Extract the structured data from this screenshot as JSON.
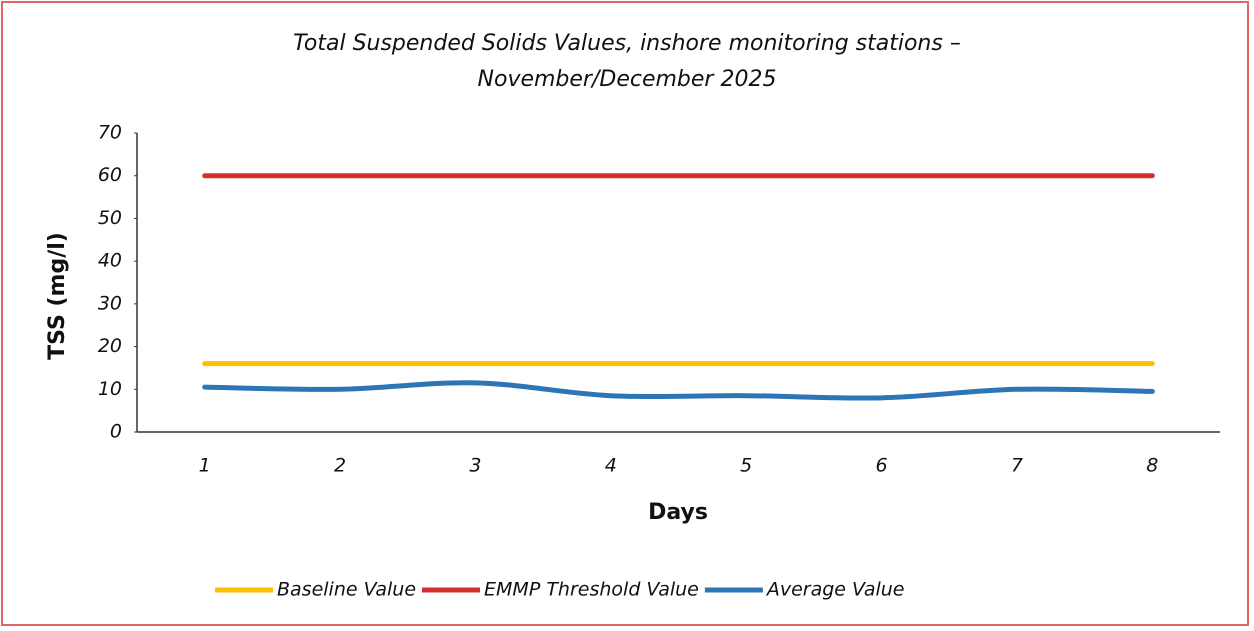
{
  "chart_data": {
    "type": "line",
    "title": "Total Suspended Solids Values, inshore monitoring stations – November/December 2025",
    "x_label": "Days",
    "y_label": "TSS (mg/l)",
    "categories": [
      "1",
      "2",
      "3",
      "4",
      "5",
      "6",
      "7",
      "8"
    ],
    "series": [
      {
        "name": "Baseline Value",
        "color": "#ffc000",
        "values": [
          16,
          16,
          16,
          16,
          16,
          16,
          16,
          16
        ]
      },
      {
        "name": "EMMP Threshold Value",
        "color": "#d2302c",
        "values": [
          60,
          60,
          60,
          60,
          60,
          60,
          60,
          60
        ]
      },
      {
        "name": "Average Value",
        "color": "#2e75b6",
        "values": [
          10.5,
          10,
          11.5,
          8.5,
          8.5,
          8,
          10,
          9.5
        ]
      }
    ],
    "ylim": [
      0,
      70
    ],
    "yticks": [
      0,
      10,
      20,
      30,
      40,
      50,
      60,
      70
    ],
    "smooth": true,
    "legend": "bottom"
  }
}
